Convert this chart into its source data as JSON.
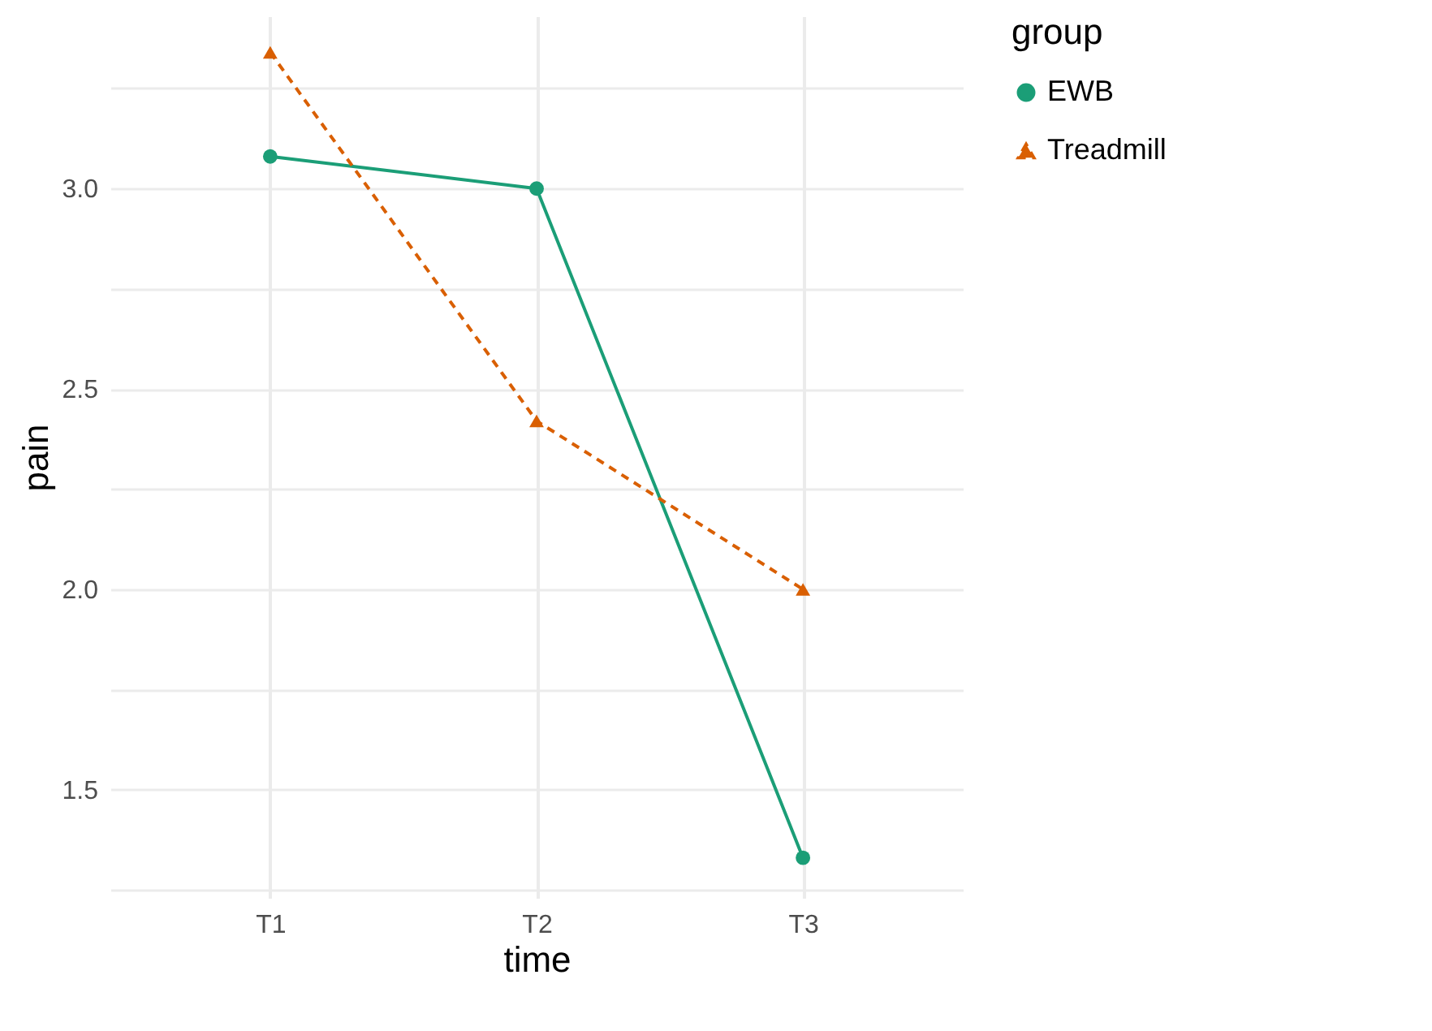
{
  "chart_data": {
    "type": "line",
    "xlabel": "time",
    "ylabel": "pain",
    "legend_title": "group",
    "categories": [
      "T1",
      "T2",
      "T3"
    ],
    "series": [
      {
        "name": "EWB",
        "color": "#1b9e77",
        "values": [
          3.08,
          3.0,
          1.33
        ],
        "marker": "circle",
        "line_style": "solid"
      },
      {
        "name": "Treadmill",
        "color": "#d95f02",
        "values": [
          3.34,
          2.42,
          2.0
        ],
        "marker": "triangle",
        "line_style": "dashed"
      }
    ],
    "ylim": [
      1.23,
      3.43
    ],
    "yticks": [
      {
        "value": 1.25,
        "label": null
      },
      1.5,
      {
        "value": 1.75,
        "label": null
      },
      {
        "value": 2,
        "label": "2.0"
      },
      {
        "value": 2.25,
        "label": null
      },
      2.5,
      {
        "value": 2.75,
        "label": null
      },
      {
        "value": 3,
        "label": "3.0"
      },
      {
        "value": 3.25,
        "label": null
      }
    ],
    "grid": true,
    "legend": "right"
  }
}
